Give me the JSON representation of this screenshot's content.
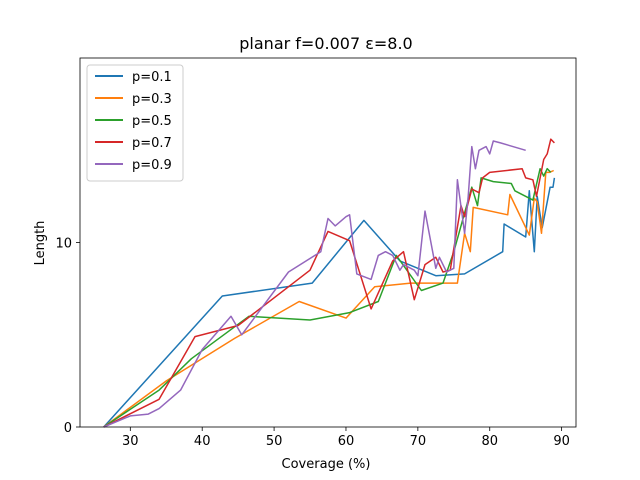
{
  "chart_data": {
    "type": "line",
    "title": "planar f=0.007 ε=8.0",
    "xlabel": "Coverage (%)",
    "ylabel": "Length",
    "xlim": [
      23,
      92
    ],
    "ylim": [
      0,
      20
    ],
    "xticks": [
      30,
      40,
      50,
      60,
      70,
      80,
      90
    ],
    "yticks": [
      0,
      10
    ],
    "grid": false,
    "legend_position": "top-left",
    "series": [
      {
        "name": "p=0.1",
        "color": "#1f77b4",
        "x": [
          26.3,
          42.8,
          55.3,
          62.5,
          67.5,
          72.5,
          76.5,
          81.8,
          82.0,
          85.0,
          85.5,
          86.2,
          86.6,
          87.3,
          88.4,
          88.8,
          89.0
        ],
        "y": [
          0.0,
          7.1,
          7.8,
          11.2,
          9.0,
          8.2,
          8.3,
          9.5,
          11.0,
          10.3,
          12.8,
          9.5,
          12.5,
          10.8,
          13.0,
          13.0,
          13.5
        ]
      },
      {
        "name": "p=0.3",
        "color": "#ff7f0e",
        "x": [
          26.3,
          35.0,
          44.5,
          53.5,
          60.0,
          64.0,
          69.0,
          75.5,
          76.5,
          77.3,
          77.7,
          82.5,
          82.8,
          85.5,
          86.2,
          86.6,
          87.2,
          87.8,
          88.3,
          88.9
        ],
        "y": [
          0.0,
          2.5,
          4.8,
          6.8,
          5.9,
          7.6,
          7.8,
          7.8,
          10.5,
          9.5,
          11.9,
          11.5,
          12.6,
          10.4,
          12.4,
          12.2,
          10.5,
          13.8,
          13.8,
          13.9
        ],
        "y_note": ""
      },
      {
        "name": "p=0.5",
        "color": "#2ca02c",
        "x": [
          26.3,
          34.0,
          38.5,
          46.5,
          55.0,
          60.5,
          64.5,
          67.0,
          70.5,
          73.5,
          75.0,
          77.5,
          78.3,
          78.8,
          80.5,
          83.0,
          83.5,
          86.0,
          87.0,
          87.5,
          88.0,
          88.5
        ],
        "y": [
          0.0,
          2.0,
          3.7,
          6.0,
          5.8,
          6.2,
          6.8,
          9.3,
          7.4,
          7.8,
          9.5,
          13.0,
          12.0,
          13.5,
          13.3,
          13.2,
          12.8,
          12.3,
          14.0,
          13.6,
          14.0,
          13.8
        ]
      },
      {
        "name": "p=0.7",
        "color": "#d62728",
        "x": [
          26.3,
          34.0,
          39.0,
          45.0,
          55.0,
          57.5,
          60.5,
          63.5,
          66.5,
          68.0,
          69.5,
          71.0,
          72.5,
          73.5,
          74.5,
          76.0,
          76.5,
          77.5,
          78.5,
          79.0,
          80.0,
          84.5,
          85.0,
          86.0,
          86.5,
          87.5,
          88.0,
          88.5,
          89.0
        ],
        "y": [
          0.0,
          1.5,
          4.9,
          5.5,
          8.5,
          10.6,
          10.1,
          6.4,
          9.0,
          9.5,
          6.9,
          8.8,
          9.2,
          8.4,
          8.5,
          12.0,
          11.4,
          12.9,
          12.7,
          13.5,
          13.8,
          14.0,
          13.5,
          13.4,
          12.5,
          14.5,
          14.8,
          15.6,
          15.4
        ]
      },
      {
        "name": "p=0.9",
        "color": "#9467bd",
        "x": [
          26.3,
          30.0,
          32.5,
          34.0,
          37.0,
          40.0,
          44.0,
          45.5,
          52.0,
          56.5,
          57.5,
          58.5,
          60.0,
          60.5,
          61.5,
          63.5,
          64.5,
          65.5,
          66.5,
          67.5,
          68.0,
          69.5,
          70.0,
          71.0,
          72.5,
          73.0,
          74.0,
          75.0,
          75.5,
          76.5,
          77.0,
          77.5,
          78.0,
          78.5,
          79.5,
          80.0,
          80.5,
          81.5,
          85.0
        ],
        "y": [
          0.0,
          0.6,
          0.7,
          1.0,
          2.0,
          4.2,
          6.0,
          5.0,
          8.4,
          9.5,
          11.3,
          10.9,
          11.4,
          11.5,
          8.3,
          8.0,
          9.3,
          9.5,
          9.3,
          8.5,
          8.8,
          8.5,
          8.2,
          11.7,
          8.6,
          9.2,
          8.4,
          8.6,
          13.4,
          10.5,
          12.5,
          15.2,
          14.0,
          15.0,
          15.2,
          14.8,
          15.5,
          15.4,
          15.0
        ]
      }
    ]
  }
}
